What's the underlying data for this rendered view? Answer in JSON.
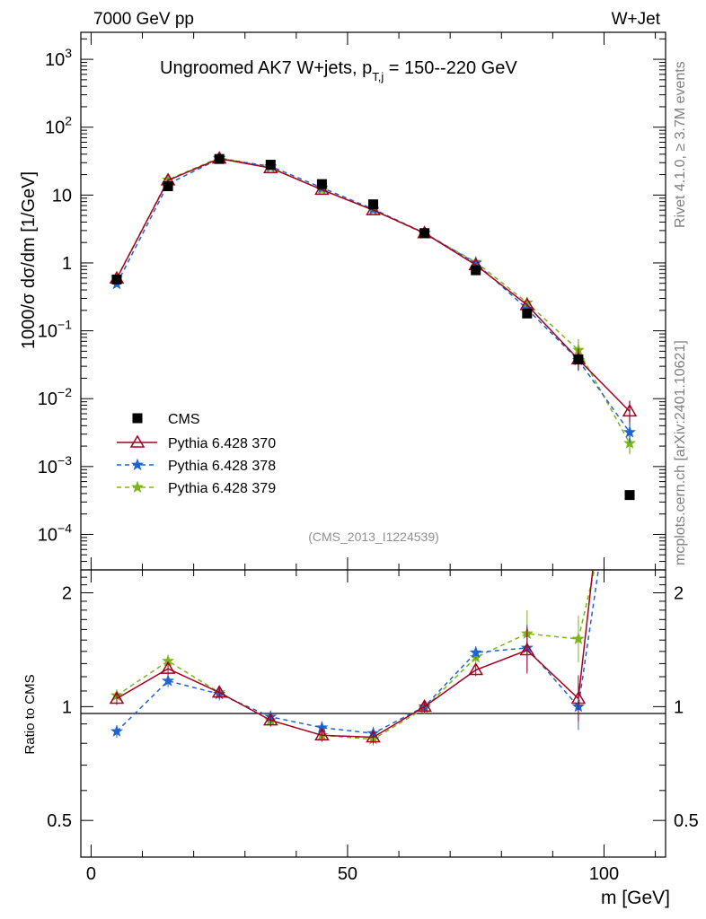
{
  "header": {
    "left": "7000 GeV pp",
    "right": "W+Jet",
    "side_top": "Rivet 4.1.0, ≥ 3.7M events",
    "side_bottom": "mcplots.cern.ch [arXiv:2401.10621]"
  },
  "chart_data": {
    "type": "line",
    "title": "Ungroomed AK7 W+jets, p_T,j = 150--220 GeV",
    "title_main": "Ungroomed AK7 W+jets, p",
    "title_sub": "T,j",
    "title_tail": " = 150--220 GeV",
    "analysis_id": "(CMS_2013_I1224539)",
    "ylabel": "1000/σ  dσ/dm [1/GeV]",
    "ylabel_ratio": "Ratio to CMS",
    "xlabel": "m [GeV]",
    "ylim": [
      3e-05,
      2500
    ],
    "ratio_ylim": [
      0.4,
      2.3
    ],
    "xlim": [
      -2,
      112
    ],
    "x": [
      5,
      15,
      25,
      35,
      45,
      55,
      65,
      75,
      85,
      95,
      105
    ],
    "x_ticks": [
      0,
      50,
      100
    ],
    "x_tick_labels": [
      "0",
      "50",
      "100"
    ],
    "y_ticks": [
      {
        "v": 0.0001,
        "base": "10",
        "exp": "−4"
      },
      {
        "v": 0.001,
        "base": "10",
        "exp": "−3"
      },
      {
        "v": 0.01,
        "base": "10",
        "exp": "−2"
      },
      {
        "v": 0.1,
        "base": "10",
        "exp": "−1"
      },
      {
        "v": 1,
        "base": "1",
        "exp": ""
      },
      {
        "v": 10,
        "base": "10",
        "exp": ""
      },
      {
        "v": 100,
        "base": "10",
        "exp": "2"
      },
      {
        "v": 1000,
        "base": "10",
        "exp": "3"
      }
    ],
    "ratio_ticks": [
      {
        "v": 0.5,
        "label": "0.5"
      },
      {
        "v": 1,
        "label": "1"
      },
      {
        "v": 2,
        "label": "2"
      }
    ],
    "data": {
      "name": "CMS",
      "values": [
        0.57,
        13.5,
        34.0,
        28.0,
        14.5,
        7.3,
        2.75,
        0.78,
        0.18,
        0.038,
        0.00038
      ]
    },
    "series": [
      {
        "name": "Pythia 6.428 370",
        "color": "#a50021",
        "dash": "",
        "marker": "triangle",
        "values": [
          0.59,
          16.5,
          34.5,
          25.0,
          12.0,
          6.0,
          2.75,
          0.93,
          0.24,
          0.038,
          0.0065
        ],
        "ratio": [
          1.05,
          1.26,
          1.09,
          0.92,
          0.84,
          0.83,
          1.0,
          1.25,
          1.41,
          1.05,
          17.0
        ]
      },
      {
        "name": "Pythia 6.428 378",
        "color": "#1f64d2",
        "dash": "5,4",
        "marker": "star",
        "values": [
          0.49,
          14.5,
          34.5,
          26.5,
          12.8,
          6.2,
          2.75,
          1.0,
          0.21,
          0.037,
          0.0032
        ],
        "ratio": [
          0.86,
          1.17,
          1.08,
          0.94,
          0.88,
          0.85,
          1.0,
          1.39,
          1.43,
          1.0,
          8.4
        ]
      },
      {
        "name": "Pythia 6.428 379",
        "color": "#7ab51a",
        "dash": "5,4",
        "marker": "star",
        "values": [
          0.6,
          16.8,
          35.5,
          25.5,
          12.0,
          6.0,
          2.7,
          1.03,
          0.26,
          0.052,
          0.0022
        ],
        "ratio": [
          1.07,
          1.32,
          1.09,
          0.92,
          0.84,
          0.82,
          0.99,
          1.35,
          1.56,
          1.51,
          5.8
        ]
      }
    ]
  }
}
